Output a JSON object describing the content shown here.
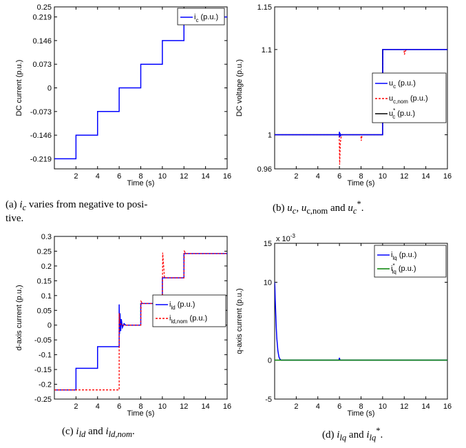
{
  "chart_data": [
    {
      "id": "a",
      "type": "line",
      "caption": "(a) i_c varies from negative to positive.",
      "caption_parts": [
        "(a) ",
        "i",
        "c",
        " varies from negative to posi-",
        "tive."
      ],
      "xlabel": "Time (s)",
      "ylabel": "DC current (p.u.)",
      "xlim": [
        0,
        16
      ],
      "ylim": [
        -0.25,
        0.25
      ],
      "xticks": [
        2,
        4,
        6,
        8,
        10,
        12,
        14,
        16
      ],
      "yticks": [
        -0.219,
        -0.146,
        -0.073,
        0,
        0.073,
        0.146,
        0.219,
        0.25
      ],
      "ytick_labels": [
        "-0.219",
        "-0.146",
        "-0.073",
        "0",
        "0.073",
        "0.146",
        "0.219",
        "0.25"
      ],
      "grid": false,
      "legend_position": "top-right",
      "series": [
        {
          "name": "i_c (p.u.)",
          "color": "#0000ff",
          "dash": "solid",
          "x": [
            0,
            2,
            2,
            4,
            4,
            6,
            6,
            8,
            8,
            10,
            10,
            12,
            12,
            16
          ],
          "y": [
            -0.219,
            -0.219,
            -0.146,
            -0.146,
            -0.073,
            -0.073,
            0,
            0,
            0.073,
            0.073,
            0.146,
            0.146,
            0.219,
            0.219
          ]
        }
      ]
    },
    {
      "id": "b",
      "type": "line",
      "caption_parts": [
        "(b) ",
        "u",
        "c",
        ", ",
        "u",
        "c,nom",
        " and ",
        "u",
        "c",
        "*",
        "."
      ],
      "xlabel": "Time (s)",
      "ylabel": "DC voltage (p.u.)",
      "xlim": [
        0,
        16
      ],
      "ylim": [
        0.96,
        1.15
      ],
      "xticks": [
        2,
        4,
        6,
        8,
        10,
        12,
        14,
        16
      ],
      "yticks": [
        0.96,
        1,
        1.1,
        1.15
      ],
      "ytick_labels": [
        "0.96",
        "1",
        "1.1",
        "1.15"
      ],
      "grid": false,
      "legend_position": "right",
      "series": [
        {
          "name": "u_c (p.u.)",
          "color": "#0000ff",
          "dash": "solid",
          "x": [
            0,
            5.98,
            6.0,
            6.02,
            6.05,
            6.1,
            6.2,
            8,
            10,
            10.02,
            12,
            16
          ],
          "y": [
            1,
            1,
            1.0035,
            0.997,
            1.002,
            0.999,
            1,
            1,
            1,
            1.1,
            1.1,
            1.1
          ]
        },
        {
          "name": "u_c,nom (p.u.)",
          "color": "#ff0000",
          "dash": "dashed",
          "x": [
            0,
            5.98,
            6.02,
            6.08,
            6.15,
            6.3,
            7.98,
            8.02,
            8.08,
            8.2,
            10,
            10.02,
            11.98,
            12.02,
            12.1,
            12.2,
            16
          ],
          "y": [
            1,
            1,
            0.965,
            0.99,
            0.997,
            1,
            1,
            0.993,
            0.998,
            1,
            1,
            1.1,
            1.1,
            1.094,
            1.098,
            1.1,
            1.1
          ]
        },
        {
          "name": "u_c* (p.u.)",
          "color": "#000000",
          "dash": "solid",
          "x": [
            0,
            10,
            10,
            16
          ],
          "y": [
            1,
            1,
            1.1,
            1.1
          ]
        }
      ]
    },
    {
      "id": "c",
      "type": "line",
      "caption_parts": [
        "(c) ",
        "i",
        "ld",
        " and ",
        "i",
        "ld,nom",
        "."
      ],
      "xlabel": "Time (s)",
      "ylabel": "d-axis current (p.u.)",
      "xlim": [
        0,
        16
      ],
      "ylim": [
        -0.25,
        0.3
      ],
      "xticks": [
        2,
        4,
        6,
        8,
        10,
        12,
        14,
        16
      ],
      "yticks": [
        -0.25,
        -0.2,
        -0.15,
        -0.1,
        -0.05,
        0,
        0.05,
        0.1,
        0.15,
        0.2,
        0.25,
        0.3
      ],
      "ytick_labels": [
        "-0.25",
        "-0.2",
        "-0.15",
        "-0.1",
        "-0.05",
        "0",
        "0.05",
        "0.1",
        "0.15",
        "0.2",
        "0.25",
        "0.3"
      ],
      "grid": false,
      "legend_position": "right",
      "series": [
        {
          "name": "i_ld (p.u.)",
          "color": "#0000ff",
          "dash": "solid",
          "x": [
            0,
            2,
            2,
            4,
            4,
            6,
            6.0,
            6.03,
            6.08,
            6.14,
            6.2,
            6.3,
            6.45,
            6.6,
            8,
            8,
            10,
            10,
            12,
            12,
            16
          ],
          "y": [
            -0.219,
            -0.219,
            -0.146,
            -0.146,
            -0.073,
            -0.073,
            0.07,
            -0.03,
            0.04,
            -0.02,
            0.02,
            -0.008,
            0.005,
            0,
            0,
            0.073,
            0.073,
            0.16,
            0.16,
            0.242,
            0.242
          ]
        },
        {
          "name": "i_ld,nom (p.u.)",
          "color": "#ff0000",
          "dash": "dashed",
          "x": [
            0,
            6,
            6,
            6.05,
            6.2,
            6.4,
            8,
            8.03,
            8.15,
            10,
            10.03,
            10.2,
            12,
            12.03,
            12.2,
            16
          ],
          "y": [
            -0.219,
            -0.219,
            0.04,
            0.01,
            0,
            0,
            0,
            0.08,
            0.073,
            0.073,
            0.245,
            0.16,
            0.16,
            0.25,
            0.242,
            0.242
          ]
        }
      ]
    },
    {
      "id": "d",
      "type": "line",
      "caption_parts": [
        "(d) ",
        "i",
        "lq",
        " and ",
        "i",
        "lq",
        "*",
        "."
      ],
      "xlabel": "Time (s)",
      "ylabel": "q-axis current (p.u.)",
      "xlim": [
        0,
        16
      ],
      "ylim": [
        -5,
        15
      ],
      "yscale_label": "x 10",
      "yscale_exp": "-3",
      "xticks": [
        2,
        4,
        6,
        8,
        10,
        12,
        14,
        16
      ],
      "yticks": [
        -5,
        0,
        10,
        15
      ],
      "ytick_labels": [
        "-5",
        "0",
        "10",
        "15"
      ],
      "grid": false,
      "legend_position": "top-right",
      "series": [
        {
          "name": "i_lq (p.u.)",
          "color": "#0000ff",
          "dash": "solid",
          "x": [
            0,
            0.02,
            0.05,
            0.1,
            0.15,
            0.2,
            0.3,
            0.4,
            0.5,
            0.6,
            5.95,
            6.0,
            6.05,
            16
          ],
          "y": [
            10,
            9.5,
            8,
            6,
            4.2,
            2.8,
            1.2,
            0.4,
            0.1,
            0,
            0,
            0.3,
            0,
            0
          ]
        },
        {
          "name": "i_lq* (p.u.)",
          "color": "#008000",
          "dash": "solid",
          "x": [
            0,
            16
          ],
          "y": [
            0,
            0
          ]
        }
      ]
    }
  ]
}
